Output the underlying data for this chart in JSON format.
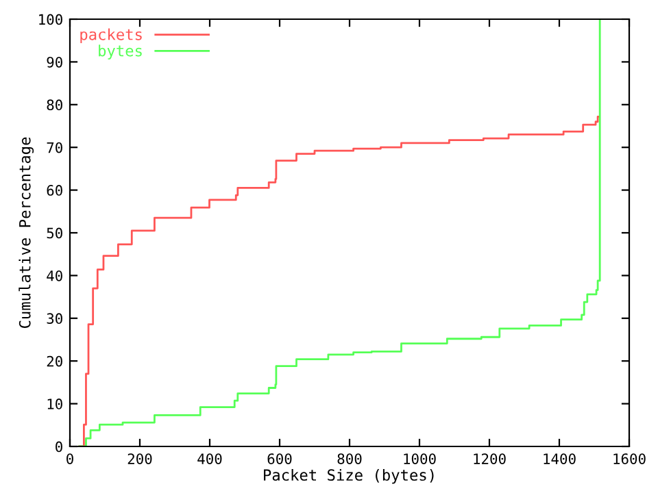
{
  "chart_data": {
    "type": "step",
    "xlabel": "Packet Size (bytes)",
    "ylabel": "Cumulative Percentage",
    "xlim": [
      0,
      1600
    ],
    "xticks": [
      0,
      200,
      400,
      600,
      800,
      1000,
      1200,
      1400,
      1600
    ],
    "ylim": [
      0,
      100
    ],
    "yticks": [
      0,
      10,
      20,
      30,
      40,
      50,
      60,
      70,
      80,
      90,
      100
    ],
    "grid": false,
    "legend": "top left",
    "series": [
      {
        "name": "packets",
        "color": "#ff5555",
        "x": [
          27,
          40,
          46,
          53,
          66,
          79,
          96,
          138,
          177,
          242,
          347,
          399,
          475,
          480,
          569,
          588,
          590,
          648,
          700,
          811,
          889,
          948,
          1085,
          1183,
          1255,
          1412,
          1468,
          1504,
          1510,
          1512
        ],
        "values": [
          0,
          5.1,
          17,
          28.6,
          37,
          41.4,
          44.6,
          47.3,
          50.5,
          53.5,
          55.9,
          57.7,
          58.8,
          60.5,
          61.8,
          62.6,
          66.9,
          68.5,
          69.2,
          69.7,
          70,
          71,
          71.7,
          72.1,
          73,
          73.7,
          75.3,
          76,
          77.2,
          77.2
        ]
      },
      {
        "name": "bytes",
        "color": "#55ff55",
        "x": [
          27,
          46,
          59,
          85,
          151,
          242,
          373,
          471,
          480,
          569,
          588,
          590,
          648,
          739,
          811,
          863,
          948,
          1079,
          1177,
          1229,
          1314,
          1405,
          1464,
          1471,
          1480,
          1506,
          1510,
          1516
        ],
        "values": [
          0,
          1.9,
          3.8,
          5.1,
          5.6,
          7.3,
          9.2,
          10.7,
          12.4,
          13.7,
          14.5,
          18.8,
          20.4,
          21.5,
          22,
          22.2,
          24.1,
          25.2,
          25.6,
          27.6,
          28.3,
          29.7,
          30.8,
          33.8,
          35.6,
          36.6,
          38.8,
          100
        ]
      }
    ]
  }
}
